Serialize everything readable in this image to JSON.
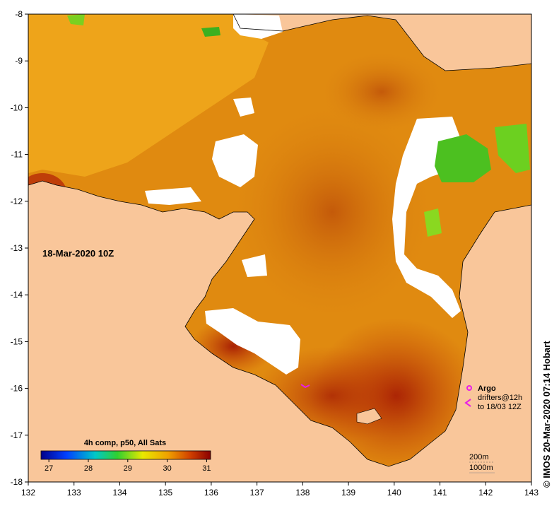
{
  "map": {
    "timestamp": "18-Mar-2020 10Z",
    "lon_ticks": [
      "132",
      "133",
      "134",
      "135",
      "136",
      "137",
      "138",
      "139",
      "140",
      "141",
      "142",
      "143"
    ],
    "lat_ticks": [
      "-8",
      "-9",
      "-10",
      "-11",
      "-12",
      "-13",
      "-14",
      "-15",
      "-16",
      "-17",
      "-18"
    ],
    "lon_range": [
      132,
      143
    ],
    "lat_range": [
      -8,
      -18
    ]
  },
  "colorbar": {
    "title": "4h comp, p50, All Sats",
    "ticks": [
      "27",
      "28",
      "29",
      "30",
      "31"
    ],
    "range": [
      26.8,
      31.1
    ]
  },
  "legend": {
    "argo_label": "Argo",
    "drifters_label": "drifters@12h",
    "drifters_time": "to 18/03 12Z",
    "contour_200": "200m",
    "contour_1000": "1000m"
  },
  "credit": "© IMOS 20-Mar-2020 07:14 Hobart",
  "colors": {
    "land": "#f9c69a",
    "sst_warm": "#b52a05",
    "sst_mid": "#e08a10",
    "sst_cool": "#f4b622",
    "cloud": "#ffffff",
    "marker": "#e81ee8"
  }
}
